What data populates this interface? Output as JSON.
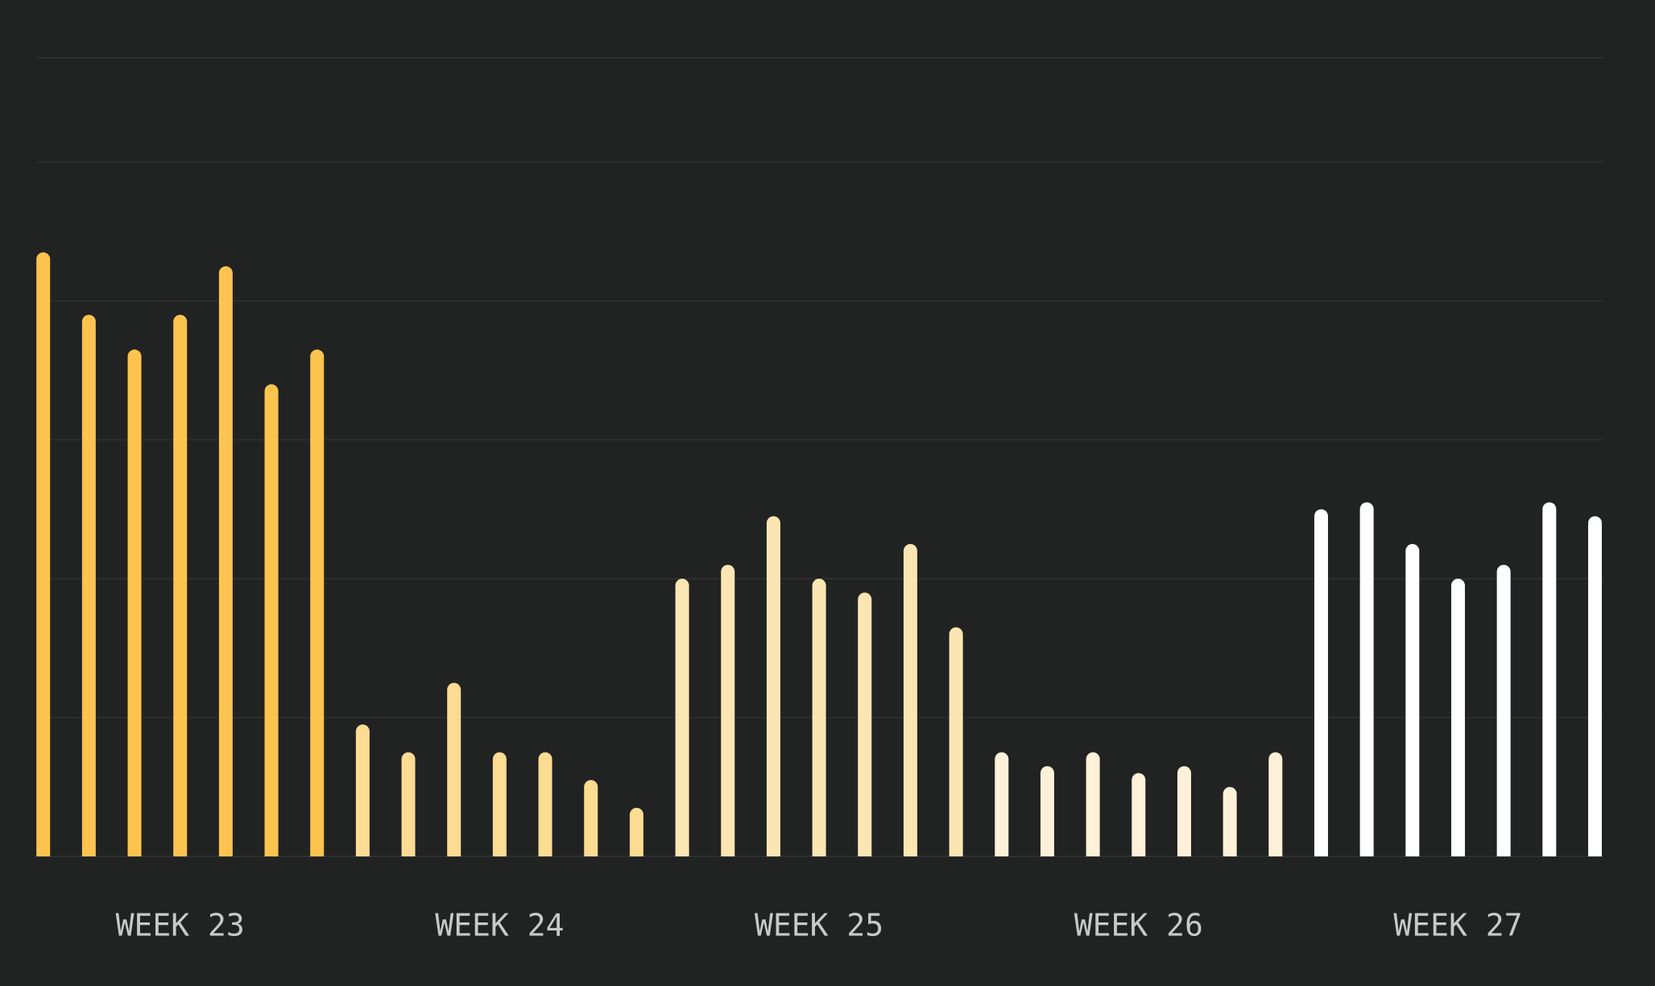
{
  "chart_data": {
    "type": "bar",
    "ylim": [
      0,
      115
    ],
    "yticks": [
      0,
      20,
      40,
      60,
      80,
      100,
      115
    ],
    "grid": true,
    "groups": [
      {
        "label": "WEEK 23",
        "color": "#fdc34f",
        "values": [
          87,
          78,
          73,
          78,
          85,
          68,
          73
        ]
      },
      {
        "label": "WEEK 24",
        "color": "#fcdb93",
        "values": [
          19,
          15,
          25,
          15,
          15,
          11,
          7
        ]
      },
      {
        "label": "WEEK 25",
        "color": "#fbe6b3",
        "values": [
          40,
          42,
          49,
          40,
          38,
          45,
          33
        ]
      },
      {
        "label": "WEEK 26",
        "color": "#fdf2d9",
        "values": [
          15,
          13,
          15,
          12,
          13,
          10,
          15
        ]
      },
      {
        "label": "WEEK 27",
        "color": "#ffffff",
        "values": [
          50,
          51,
          45,
          40,
          42,
          51,
          49
        ]
      }
    ]
  }
}
